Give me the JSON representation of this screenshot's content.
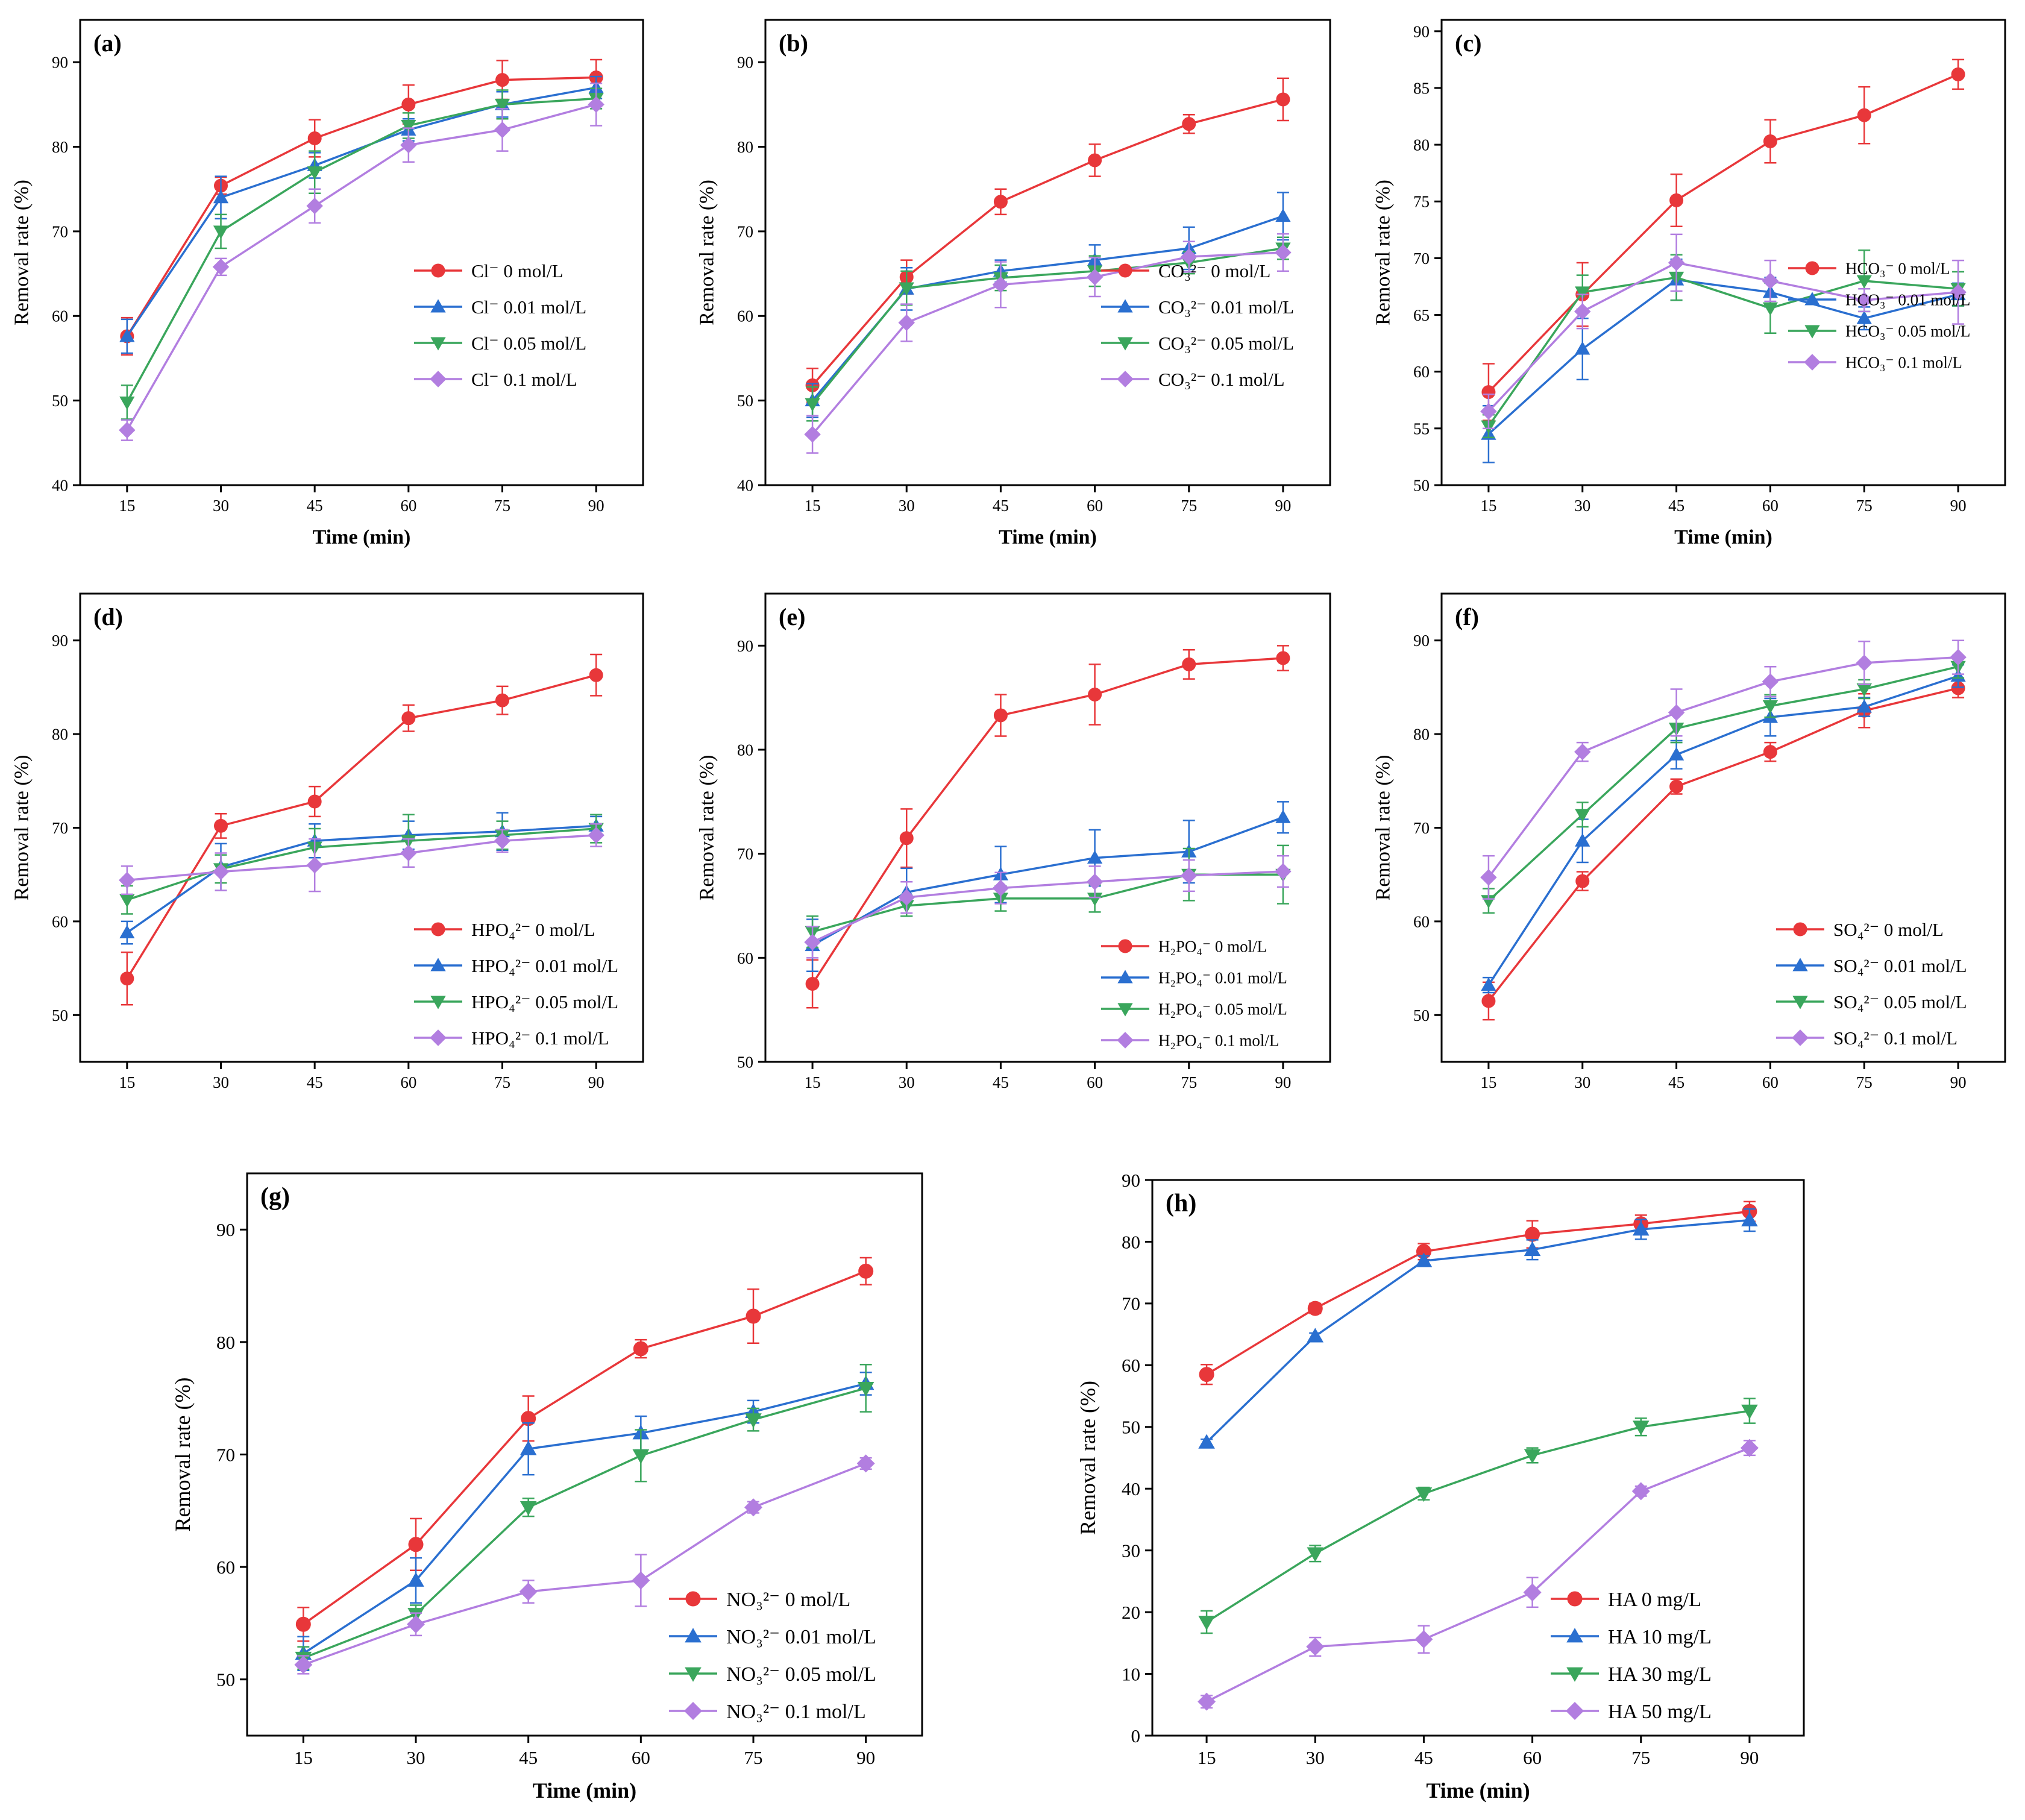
{
  "colors": {
    "s0": "#e8373a",
    "s1": "#2a6fd0",
    "s2": "#3aa65c",
    "s3": "#b27ee0"
  },
  "chart_data": [
    {
      "id": "a",
      "panel_label": "(a)",
      "type": "line",
      "xlabel": "Time (min)",
      "ylabel": "Removal rate (%)",
      "x": [
        15,
        30,
        45,
        60,
        75,
        90
      ],
      "ylim": [
        40,
        95
      ],
      "yticks": [
        40,
        50,
        60,
        70,
        80,
        90
      ],
      "series": [
        {
          "name": "Cl⁻ 0 mol/L",
          "marker": "circle",
          "values": [
            57.6,
            75.4,
            81.0,
            85.0,
            87.9,
            88.2
          ],
          "errors": [
            2.2,
            1.0,
            2.2,
            2.3,
            2.3,
            2.1
          ]
        },
        {
          "name": "Cl⁻ 0.01 mol/L",
          "marker": "triangle-up",
          "values": [
            57.6,
            74.0,
            77.8,
            82.0,
            85.0,
            87.0
          ],
          "errors": [
            2.0,
            2.5,
            1.5,
            1.3,
            1.5,
            1.3
          ]
        },
        {
          "name": "Cl⁻ 0.05 mol/L",
          "marker": "triangle-down",
          "values": [
            49.8,
            70.0,
            77.0,
            82.5,
            85.0,
            85.7
          ],
          "errors": [
            2.0,
            2.0,
            2.5,
            1.5,
            1.7,
            1.2
          ]
        },
        {
          "name": "Cl⁻ 0.1 mol/L",
          "marker": "diamond",
          "values": [
            46.5,
            65.8,
            73.0,
            80.2,
            82.0,
            85.0
          ],
          "errors": [
            1.2,
            1.0,
            2.0,
            2.0,
            2.5,
            2.5
          ]
        }
      ]
    },
    {
      "id": "b",
      "panel_label": "(b)",
      "type": "line",
      "xlabel": "Time (min)",
      "ylabel": "Removal rate (%)",
      "x": [
        15,
        30,
        45,
        60,
        75,
        90
      ],
      "ylim": [
        40,
        95
      ],
      "yticks": [
        40,
        50,
        60,
        70,
        80,
        90
      ],
      "series": [
        {
          "name": "CO₃²⁻ 0 mol/L",
          "marker": "circle",
          "values": [
            51.8,
            64.6,
            73.5,
            78.4,
            82.7,
            85.6
          ],
          "errors": [
            2.0,
            2.0,
            1.5,
            1.9,
            1.1,
            2.5
          ]
        },
        {
          "name": "CO₃²⁻ 0.01 mol/L",
          "marker": "triangle-up",
          "values": [
            50.0,
            63.2,
            65.3,
            66.6,
            68.0,
            71.8
          ],
          "errors": [
            2.0,
            2.5,
            1.3,
            1.8,
            2.5,
            2.8
          ]
        },
        {
          "name": "CO₃²⁻ 0.05 mol/L",
          "marker": "triangle-down",
          "values": [
            49.6,
            63.3,
            64.5,
            65.3,
            66.3,
            68.0
          ],
          "errors": [
            2.0,
            2.0,
            1.5,
            1.8,
            1.3,
            1.3
          ]
        },
        {
          "name": "CO₃²⁻ 0.1 mol/L",
          "marker": "diamond",
          "values": [
            46.0,
            59.2,
            63.7,
            64.6,
            67.0,
            67.5
          ],
          "errors": [
            2.2,
            2.2,
            2.7,
            2.3,
            1.8,
            2.2
          ]
        }
      ]
    },
    {
      "id": "c",
      "panel_label": "(c)",
      "type": "line",
      "xlabel": "Time (min)",
      "ylabel": "Removal rate (%)",
      "x": [
        15,
        30,
        45,
        60,
        75,
        90
      ],
      "ylim": [
        50,
        91
      ],
      "yticks": [
        50,
        55,
        60,
        65,
        70,
        75,
        80,
        85,
        90
      ],
      "series": [
        {
          "name": "HCO₃⁻ 0 mol/L",
          "marker": "circle",
          "values": [
            58.2,
            66.8,
            75.1,
            80.3,
            82.6,
            86.2
          ],
          "errors": [
            2.5,
            2.8,
            2.3,
            1.9,
            2.5,
            1.3
          ]
        },
        {
          "name": "HCO₃⁻ 0.01 mol/L",
          "marker": "triangle-up",
          "values": [
            54.5,
            62.0,
            68.1,
            67.0,
            64.7,
            66.8
          ],
          "errors": [
            2.5,
            2.7,
            1.8,
            1.3,
            1.0,
            1.0
          ]
        },
        {
          "name": "HCO₃⁻ 0.05 mol/L",
          "marker": "triangle-down",
          "values": [
            55.2,
            67.0,
            68.3,
            65.6,
            68.0,
            67.3
          ],
          "errors": [
            1.0,
            1.5,
            2.0,
            2.2,
            2.7,
            1.5
          ]
        },
        {
          "name": "HCO₃⁻ 0.1 mol/L",
          "marker": "diamond",
          "values": [
            56.5,
            65.3,
            69.6,
            68.0,
            66.3,
            67.0
          ],
          "errors": [
            1.5,
            1.5,
            2.5,
            1.8,
            1.0,
            2.8
          ]
        }
      ]
    },
    {
      "id": "d",
      "panel_label": "(d)",
      "type": "line",
      "xlabel": "",
      "ylabel": "Removal rate (%)",
      "x": [
        15,
        30,
        45,
        60,
        75,
        90
      ],
      "ylim": [
        45,
        95
      ],
      "yticks": [
        50,
        60,
        70,
        80,
        90
      ],
      "series": [
        {
          "name": "HPO₄²⁻ 0 mol/L",
          "marker": "circle",
          "values": [
            53.9,
            70.2,
            72.8,
            81.7,
            83.6,
            86.3
          ],
          "errors": [
            2.8,
            1.3,
            1.6,
            1.4,
            1.5,
            2.2
          ]
        },
        {
          "name": "HPO₄²⁻ 0.01 mol/L",
          "marker": "triangle-up",
          "values": [
            58.8,
            65.8,
            68.6,
            69.2,
            69.6,
            70.2
          ],
          "errors": [
            1.2,
            2.5,
            1.8,
            1.5,
            2.0,
            1.0
          ]
        },
        {
          "name": "HPO₄²⁻ 0.05 mol/L",
          "marker": "triangle-down",
          "values": [
            62.3,
            65.6,
            67.9,
            68.6,
            69.2,
            69.9
          ],
          "errors": [
            1.5,
            1.5,
            2.0,
            2.8,
            1.5,
            1.5
          ]
        },
        {
          "name": "HPO₄²⁻ 0.1 mol/L",
          "marker": "diamond",
          "values": [
            64.4,
            65.3,
            66.0,
            67.3,
            68.6,
            69.2
          ],
          "errors": [
            1.5,
            2.0,
            2.8,
            1.5,
            1.2,
            1.2
          ]
        }
      ]
    },
    {
      "id": "e",
      "panel_label": "(e)",
      "type": "line",
      "xlabel": "",
      "ylabel": "Removal rate (%)",
      "x": [
        15,
        30,
        45,
        60,
        75,
        90
      ],
      "ylim": [
        50,
        95
      ],
      "yticks": [
        50,
        60,
        70,
        80,
        90
      ],
      "series": [
        {
          "name": "H₂PO₄⁻ 0 mol/L",
          "marker": "circle",
          "values": [
            57.5,
            71.5,
            83.3,
            85.3,
            88.2,
            88.8
          ],
          "errors": [
            2.3,
            2.8,
            2.0,
            2.9,
            1.4,
            1.2
          ]
        },
        {
          "name": "H₂PO₄⁻ 0.01 mol/L",
          "marker": "triangle-up",
          "values": [
            61.2,
            66.3,
            68.0,
            69.6,
            70.2,
            73.5
          ],
          "errors": [
            2.5,
            2.3,
            2.7,
            2.7,
            3.0,
            1.5
          ]
        },
        {
          "name": "H₂PO₄⁻ 0.05 mol/L",
          "marker": "triangle-down",
          "values": [
            62.5,
            65.0,
            65.7,
            65.7,
            68.0,
            68.0
          ],
          "errors": [
            1.5,
            1.0,
            1.2,
            1.3,
            2.5,
            2.8
          ]
        },
        {
          "name": "H₂PO₄⁻ 0.1 mol/L",
          "marker": "diamond",
          "values": [
            61.5,
            65.8,
            66.7,
            67.3,
            67.9,
            68.3
          ],
          "errors": [
            1.5,
            1.5,
            1.5,
            1.5,
            1.5,
            1.5
          ]
        }
      ]
    },
    {
      "id": "f",
      "panel_label": "(f)",
      "type": "line",
      "xlabel": "",
      "ylabel": "Removal rate (%)",
      "x": [
        15,
        30,
        45,
        60,
        75,
        90
      ],
      "ylim": [
        45,
        95
      ],
      "yticks": [
        50,
        60,
        70,
        80,
        90
      ],
      "series": [
        {
          "name": "SO₄²⁻ 0 mol/L",
          "marker": "circle",
          "values": [
            51.5,
            64.3,
            74.4,
            78.1,
            82.5,
            84.9
          ],
          "errors": [
            2.0,
            1.0,
            0.8,
            1.0,
            1.8,
            1.0
          ]
        },
        {
          "name": "SO₄²⁻ 0.01 mol/L",
          "marker": "triangle-up",
          "values": [
            53.2,
            68.6,
            77.8,
            81.8,
            82.9,
            86.2
          ],
          "errors": [
            0.8,
            2.3,
            1.5,
            2.0,
            1.0,
            1.2
          ]
        },
        {
          "name": "SO₄²⁻ 0.05 mol/L",
          "marker": "triangle-down",
          "values": [
            62.2,
            71.4,
            80.6,
            83.0,
            84.8,
            87.2
          ],
          "errors": [
            1.3,
            1.3,
            1.5,
            1.2,
            1.0,
            1.2
          ]
        },
        {
          "name": "SO₄²⁻ 0.1 mol/L",
          "marker": "diamond",
          "values": [
            64.7,
            78.1,
            82.3,
            85.6,
            87.6,
            88.2
          ],
          "errors": [
            2.3,
            1.0,
            2.5,
            1.6,
            2.3,
            1.8
          ]
        }
      ]
    },
    {
      "id": "g",
      "panel_label": "(g)",
      "type": "line",
      "xlabel": "Time (min)",
      "ylabel": "Removal rate (%)",
      "x": [
        15,
        30,
        45,
        60,
        75,
        90
      ],
      "ylim": [
        45,
        95
      ],
      "yticks": [
        50,
        60,
        70,
        80,
        90
      ],
      "series": [
        {
          "name": "NO₃²⁻ 0 mol/L",
          "marker": "circle",
          "values": [
            54.9,
            62.0,
            73.2,
            79.4,
            82.3,
            86.3
          ],
          "errors": [
            1.5,
            2.3,
            2.0,
            0.8,
            2.4,
            1.2
          ]
        },
        {
          "name": "NO₃²⁻ 0.01 mol/L",
          "marker": "triangle-up",
          "values": [
            52.3,
            58.8,
            70.5,
            71.9,
            73.8,
            76.3
          ],
          "errors": [
            1.5,
            2.0,
            2.3,
            1.5,
            1.0,
            1.0
          ]
        },
        {
          "name": "NO₃²⁻ 0.05 mol/L",
          "marker": "triangle-down",
          "values": [
            51.9,
            55.8,
            65.3,
            69.9,
            73.1,
            75.9
          ],
          "errors": [
            1.0,
            0.8,
            0.8,
            2.3,
            1.0,
            2.1
          ]
        },
        {
          "name": "NO₃²⁻ 0.1 mol/L",
          "marker": "diamond",
          "values": [
            51.3,
            54.9,
            57.8,
            58.8,
            65.3,
            69.2
          ],
          "errors": [
            0.8,
            1.0,
            1.0,
            2.3,
            0.5,
            0.5
          ]
        }
      ]
    },
    {
      "id": "h",
      "panel_label": "(h)",
      "type": "line",
      "xlabel": "Time (min)",
      "ylabel": "Removal rate (%)",
      "x": [
        15,
        30,
        45,
        60,
        75,
        90
      ],
      "ylim": [
        0,
        90
      ],
      "yticks": [
        0,
        10,
        20,
        30,
        40,
        50,
        60,
        70,
        80,
        90
      ],
      "series": [
        {
          "name": "HA 0 mg/L",
          "marker": "circle",
          "values": [
            58.5,
            69.2,
            78.4,
            81.2,
            82.9,
            84.9
          ],
          "errors": [
            1.6,
            0.8,
            1.3,
            2.2,
            1.4,
            1.6
          ]
        },
        {
          "name": "HA 10 mg/L",
          "marker": "triangle-up",
          "values": [
            47.5,
            64.7,
            76.9,
            78.7,
            82.0,
            83.5
          ],
          "errors": [
            0.5,
            0.5,
            0.8,
            1.6,
            1.6,
            1.8
          ]
        },
        {
          "name": "HA 30 mg/L",
          "marker": "triangle-down",
          "values": [
            18.4,
            29.5,
            39.2,
            45.4,
            50.0,
            52.6
          ],
          "errors": [
            1.8,
            1.3,
            1.0,
            1.2,
            1.4,
            2.0
          ]
        },
        {
          "name": "HA 50 mg/L",
          "marker": "diamond",
          "values": [
            5.5,
            14.4,
            15.6,
            23.2,
            39.6,
            46.6
          ],
          "errors": [
            1.0,
            1.5,
            2.2,
            2.4,
            0.8,
            1.2
          ]
        }
      ]
    }
  ]
}
